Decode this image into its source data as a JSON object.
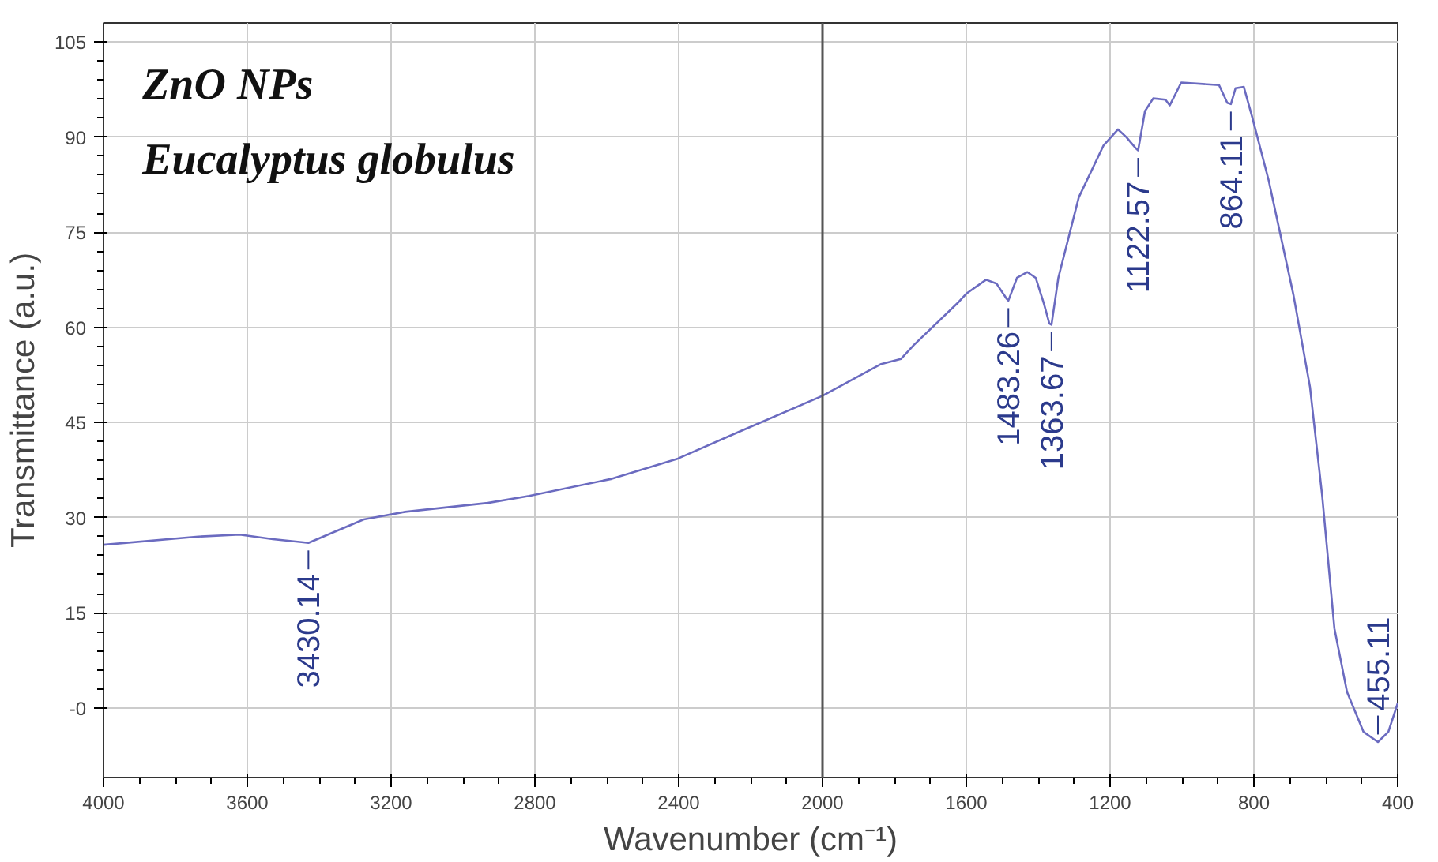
{
  "chart_data": {
    "type": "line",
    "title": "ZnO NPs",
    "subtitle": "Eucalyptus globulus",
    "xlabel": "Wavenumber (cm⁻¹)",
    "ylabel": "Transmittance (a.u.)",
    "xlim": [
      4000,
      400
    ],
    "ylim": [
      -11,
      108
    ],
    "xticks": [
      4000,
      3600,
      3200,
      2800,
      2400,
      2000,
      1600,
      1200,
      800,
      400
    ],
    "yticks": [
      {
        "value": 0,
        "label": "-0"
      },
      15,
      30,
      45,
      60,
      75,
      90,
      105
    ],
    "grid": true,
    "marker": "none",
    "line_style": "solid",
    "ref_lines": [
      {
        "axis": "x",
        "value": 2000,
        "label": null,
        "color": "#555555"
      }
    ],
    "series": [
      {
        "color": "#6b6bc0",
        "x": [
          4000,
          3736,
          3621,
          3529,
          3444,
          3430,
          3368,
          3276,
          3161,
          2931,
          2816,
          2586,
          2402,
          2241,
          2000,
          1837,
          1782,
          1746,
          1621,
          1600,
          1545,
          1516,
          1488,
          1483,
          1459,
          1430,
          1407,
          1384,
          1369,
          1363,
          1344,
          1287,
          1218,
          1178,
          1155,
          1128,
          1122,
          1103,
          1080,
          1046,
          1034,
          1002,
          897,
          874,
          864,
          851,
          828,
          805,
          759,
          690,
          644,
          610,
          576,
          541,
          495,
          455,
          426,
          400
        ],
        "values": [
          25.7,
          27.0,
          27.3,
          26.6,
          26.1,
          26.0,
          27.5,
          29.7,
          30.9,
          32.3,
          33.4,
          36.1,
          39.3,
          43.3,
          49.2,
          54.2,
          55.0,
          57.2,
          64.0,
          65.3,
          67.5,
          66.9,
          64.5,
          64.2,
          67.8,
          68.7,
          67.8,
          63.7,
          60.6,
          60.4,
          67.8,
          80.5,
          88.7,
          91.2,
          90.0,
          88.2,
          87.9,
          94.1,
          96.1,
          95.9,
          95.0,
          98.6,
          98.2,
          95.4,
          95.2,
          97.7,
          97.9,
          93.2,
          83.2,
          65.1,
          50.6,
          33.4,
          12.5,
          2.5,
          -3.8,
          -5.4,
          -3.8,
          0.7
        ]
      }
    ],
    "annotations": [
      {
        "text": "3430.14",
        "x": 3430,
        "y": 26.0
      },
      {
        "text": "1483.26",
        "x": 1483,
        "y": 64.2
      },
      {
        "text": "1363.67",
        "x": 1363,
        "y": 60.4
      },
      {
        "text": "1122.57",
        "x": 1122,
        "y": 87.9
      },
      {
        "text": "864.11",
        "x": 864,
        "y": 95.2
      },
      {
        "text": "455.11",
        "x": 455,
        "y": -5.4
      }
    ]
  }
}
